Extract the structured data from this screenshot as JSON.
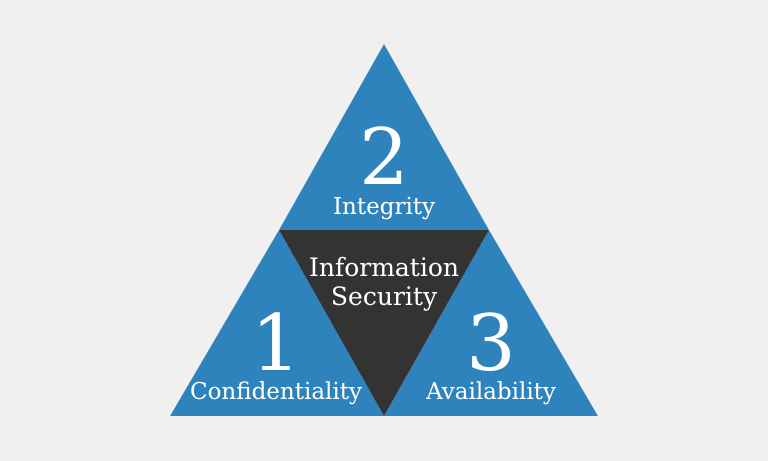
{
  "colors": {
    "background": "#f0f0f0",
    "triangle_blue": "#2f83bd",
    "center_dark": "#333333",
    "text": "#ffffff"
  },
  "diagram": {
    "top": {
      "number": "2",
      "label": "Integrity"
    },
    "left": {
      "number": "1",
      "label": "Confidentiality"
    },
    "right": {
      "number": "3",
      "label": "Availability"
    },
    "center": {
      "line1": "Information",
      "line2": "Security"
    }
  }
}
